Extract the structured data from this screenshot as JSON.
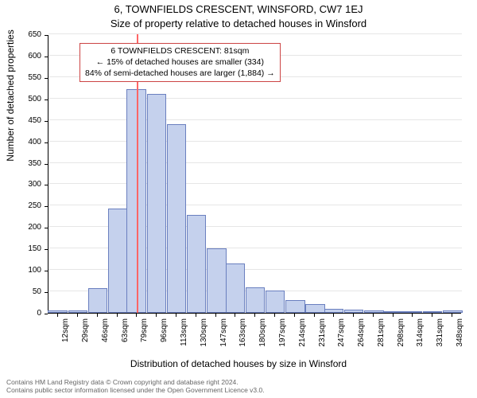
{
  "title_line1": "6, TOWNFIELDS CRESCENT, WINSFORD, CW7 1EJ",
  "title_line2": "Size of property relative to detached houses in Winsford",
  "xlabel": "Distribution of detached houses by size in Winsford",
  "ylabel": "Number of detached properties",
  "chart": {
    "type": "histogram",
    "background_color": "#ffffff",
    "grid_color": "#e6e6e6",
    "bar_fill": "#c5d1ed",
    "bar_stroke": "#6a7fbf",
    "marker_color": "#ff6666",
    "marker_x": 80,
    "x_min": 4,
    "x_max": 356,
    "ylim": [
      0,
      650
    ],
    "yticks": [
      0,
      50,
      100,
      150,
      200,
      250,
      300,
      350,
      400,
      450,
      500,
      550,
      600,
      650
    ],
    "xticks": [
      12,
      29,
      46,
      63,
      79,
      96,
      113,
      130,
      147,
      163,
      180,
      197,
      214,
      231,
      247,
      264,
      281,
      298,
      314,
      331,
      348
    ],
    "xtick_suffix": "sqm",
    "bin_width": 16.7,
    "bins": [
      {
        "x": 12,
        "count": 6
      },
      {
        "x": 29,
        "count": 6
      },
      {
        "x": 46,
        "count": 58
      },
      {
        "x": 63,
        "count": 244
      },
      {
        "x": 79,
        "count": 522
      },
      {
        "x": 96,
        "count": 510
      },
      {
        "x": 113,
        "count": 440
      },
      {
        "x": 130,
        "count": 228
      },
      {
        "x": 147,
        "count": 150
      },
      {
        "x": 163,
        "count": 116
      },
      {
        "x": 180,
        "count": 60
      },
      {
        "x": 197,
        "count": 52
      },
      {
        "x": 214,
        "count": 30
      },
      {
        "x": 231,
        "count": 20
      },
      {
        "x": 247,
        "count": 10
      },
      {
        "x": 264,
        "count": 8
      },
      {
        "x": 281,
        "count": 6
      },
      {
        "x": 298,
        "count": 4
      },
      {
        "x": 314,
        "count": 4
      },
      {
        "x": 331,
        "count": 4
      },
      {
        "x": 348,
        "count": 6
      }
    ],
    "axis_fontsize": 10,
    "label_fontsize": 12,
    "title_fontsize": 13
  },
  "annotation": {
    "line1": "6 TOWNFIELDS CRESCENT: 81sqm",
    "line2": "← 15% of detached houses are smaller (334)",
    "line3": "84% of semi-detached houses are larger (1,884) →",
    "border_color": "#cc4444"
  },
  "footer": {
    "line1": "Contains HM Land Registry data © Crown copyright and database right 2024.",
    "line2": "Contains public sector information licensed under the Open Government Licence v3.0."
  }
}
